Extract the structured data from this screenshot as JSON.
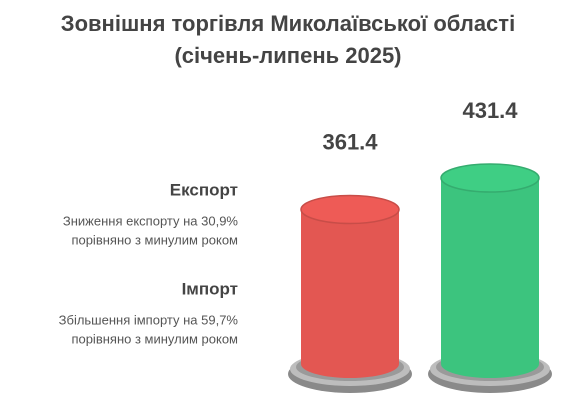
{
  "chart_data": {
    "type": "cylinder",
    "title": "Зовнішня торгівля Миколаївської області",
    "subtitle": "(січень-липень 2025)",
    "categories": [
      "Експорт",
      "Імпорт"
    ],
    "values": [
      361.4,
      431.4
    ],
    "colors": [
      "#e35752",
      "#3cc47e"
    ],
    "descriptions": [
      [
        "Зниження експорту на 30,9%",
        "порівняно з минулим роком"
      ],
      [
        "Збільшення імпорту на 59,7%",
        "порівняно з минулим роком"
      ]
    ]
  }
}
